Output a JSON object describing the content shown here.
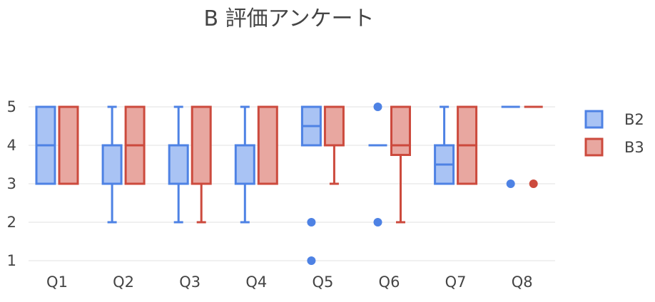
{
  "chart_data": {
    "type": "box",
    "title": "B 評価アンケート",
    "categories": [
      "Q1",
      "Q2",
      "Q3",
      "Q4",
      "Q5",
      "Q6",
      "Q7",
      "Q8"
    ],
    "yticks": [
      1,
      2,
      3,
      4,
      5
    ],
    "ylim": [
      0.8,
      5.35
    ],
    "grid": true,
    "legend_position": "right",
    "series": [
      {
        "name": "B2",
        "line_color": "#4e82e4",
        "fill_color": "#a9c3f4",
        "boxes": [
          {
            "min": 3,
            "q1": 3,
            "median": 4,
            "q3": 5,
            "max": 5,
            "outliers": []
          },
          {
            "min": 2,
            "q1": 3,
            "median": 4,
            "q3": 4,
            "max": 5,
            "outliers": []
          },
          {
            "min": 2,
            "q1": 3,
            "median": 4,
            "q3": 4,
            "max": 5,
            "outliers": []
          },
          {
            "min": 2,
            "q1": 3,
            "median": 4,
            "q3": 4,
            "max": 5,
            "outliers": []
          },
          {
            "min": 4,
            "q1": 4,
            "median": 4.5,
            "q3": 5,
            "max": 5,
            "outliers": [
              2,
              1
            ]
          },
          {
            "min": 4,
            "q1": 4,
            "median": 4,
            "q3": 4,
            "max": 4,
            "outliers": [
              5,
              2
            ]
          },
          {
            "min": 3,
            "q1": 3,
            "median": 3.5,
            "q3": 4,
            "max": 5,
            "outliers": []
          },
          {
            "min": 5,
            "q1": 5,
            "median": 5,
            "q3": 5,
            "max": 5,
            "outliers": [
              3
            ]
          }
        ]
      },
      {
        "name": "B3",
        "line_color": "#cc4a3d",
        "fill_color": "#e8a7a0",
        "boxes": [
          {
            "min": 3,
            "q1": 3,
            "median": 5,
            "q3": 5,
            "max": 5,
            "outliers": []
          },
          {
            "min": 3,
            "q1": 3,
            "median": 4,
            "q3": 5,
            "max": 5,
            "outliers": []
          },
          {
            "min": 2,
            "q1": 3,
            "median": 3,
            "q3": 5,
            "max": 5,
            "outliers": []
          },
          {
            "min": 3,
            "q1": 3,
            "median": 5,
            "q3": 5,
            "max": 5,
            "outliers": []
          },
          {
            "min": 3,
            "q1": 4,
            "median": 5,
            "q3": 5,
            "max": 5,
            "outliers": []
          },
          {
            "min": 2,
            "q1": 3.75,
            "median": 4,
            "q3": 5,
            "max": 5,
            "outliers": []
          },
          {
            "min": 3,
            "q1": 3,
            "median": 4,
            "q3": 5,
            "max": 5,
            "outliers": []
          },
          {
            "min": 5,
            "q1": 5,
            "median": 5,
            "q3": 5,
            "max": 5,
            "outliers": [
              3
            ]
          }
        ]
      }
    ]
  }
}
